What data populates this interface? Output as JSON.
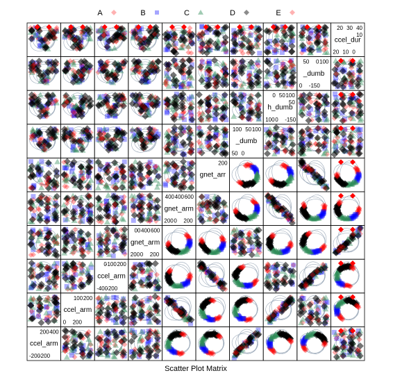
{
  "chart_data": {
    "type": "scatter",
    "subtype": "scatter-plot-matrix",
    "title": "Scatter Plot Matrix",
    "legend": {
      "placement": "top",
      "entries": [
        {
          "name": "A",
          "color": "#ff0000",
          "marker": "diamond"
        },
        {
          "name": "B",
          "color": "#0000ff",
          "marker": "square"
        },
        {
          "name": "C",
          "color": "#2e8b57",
          "marker": "triangle"
        },
        {
          "name": "D",
          "color": "#000000",
          "marker": "diamond"
        },
        {
          "name": "E",
          "color": "#ff0000",
          "marker": "diamond"
        }
      ]
    },
    "marker_colors": [
      "#ff0000",
      "#0000ff",
      "#2e8b57",
      "#000000",
      "#ff0000"
    ],
    "ellipse_color": "#9aa8b8",
    "grid": false,
    "diagonal_panels": [
      {
        "label": "ccel_dur",
        "ticks": [
          "40",
          "30",
          "20",
          "10",
          "20",
          "10",
          "0"
        ]
      },
      {
        "label": "_dumb",
        "ticks": [
          "100",
          "0",
          "50",
          "0",
          "-150"
        ]
      },
      {
        "label": "h_dumb",
        "ticks": [
          "100",
          "50",
          "0",
          "50",
          "100",
          "0",
          "-150"
        ]
      },
      {
        "label": "_dumb",
        "ticks": [
          "100",
          "50",
          "100",
          "50",
          "0"
        ]
      },
      {
        "label": "gnet_arr",
        "ticks": [
          "200"
        ]
      },
      {
        "label": "gnet_arm",
        "ticks": [
          "600",
          "400",
          "400",
          "200",
          "0",
          "200"
        ]
      },
      {
        "label": "gnet_arm",
        "ticks": [
          "600",
          "400",
          "00",
          "200",
          "0",
          "200"
        ]
      },
      {
        "label": "ccel_arm",
        "ticks": [
          "200",
          "-100",
          "0",
          "-400",
          "-200"
        ]
      },
      {
        "label": "ccel_arm",
        "ticks": [
          "200",
          "100",
          "0",
          "200"
        ]
      },
      {
        "label": "ccel_arm",
        "ticks": [
          "400",
          "200",
          "-200",
          "-200"
        ]
      }
    ]
  }
}
